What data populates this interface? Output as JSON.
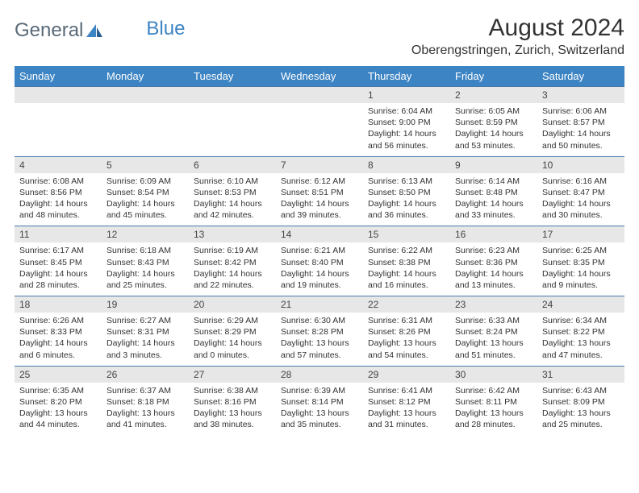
{
  "brand": {
    "part1": "General",
    "part2": "Blue"
  },
  "title": "August 2024",
  "subtitle": "Oberengstringen, Zurich, Switzerland",
  "day_headers": [
    "Sunday",
    "Monday",
    "Tuesday",
    "Wednesday",
    "Thursday",
    "Friday",
    "Saturday"
  ],
  "colors": {
    "header_bg": "#3d84c4",
    "header_text": "#ffffff",
    "daynum_bg": "#e7e7e7",
    "row_border": "#4a7aa8",
    "text": "#333333",
    "logo_gray": "#5a6a78",
    "logo_blue": "#3d84c4"
  },
  "weeks": [
    [
      null,
      null,
      null,
      null,
      {
        "n": "1",
        "sr": "6:04 AM",
        "ss": "9:00 PM",
        "dl": "14 hours and 56 minutes."
      },
      {
        "n": "2",
        "sr": "6:05 AM",
        "ss": "8:59 PM",
        "dl": "14 hours and 53 minutes."
      },
      {
        "n": "3",
        "sr": "6:06 AM",
        "ss": "8:57 PM",
        "dl": "14 hours and 50 minutes."
      }
    ],
    [
      {
        "n": "4",
        "sr": "6:08 AM",
        "ss": "8:56 PM",
        "dl": "14 hours and 48 minutes."
      },
      {
        "n": "5",
        "sr": "6:09 AM",
        "ss": "8:54 PM",
        "dl": "14 hours and 45 minutes."
      },
      {
        "n": "6",
        "sr": "6:10 AM",
        "ss": "8:53 PM",
        "dl": "14 hours and 42 minutes."
      },
      {
        "n": "7",
        "sr": "6:12 AM",
        "ss": "8:51 PM",
        "dl": "14 hours and 39 minutes."
      },
      {
        "n": "8",
        "sr": "6:13 AM",
        "ss": "8:50 PM",
        "dl": "14 hours and 36 minutes."
      },
      {
        "n": "9",
        "sr": "6:14 AM",
        "ss": "8:48 PM",
        "dl": "14 hours and 33 minutes."
      },
      {
        "n": "10",
        "sr": "6:16 AM",
        "ss": "8:47 PM",
        "dl": "14 hours and 30 minutes."
      }
    ],
    [
      {
        "n": "11",
        "sr": "6:17 AM",
        "ss": "8:45 PM",
        "dl": "14 hours and 28 minutes."
      },
      {
        "n": "12",
        "sr": "6:18 AM",
        "ss": "8:43 PM",
        "dl": "14 hours and 25 minutes."
      },
      {
        "n": "13",
        "sr": "6:19 AM",
        "ss": "8:42 PM",
        "dl": "14 hours and 22 minutes."
      },
      {
        "n": "14",
        "sr": "6:21 AM",
        "ss": "8:40 PM",
        "dl": "14 hours and 19 minutes."
      },
      {
        "n": "15",
        "sr": "6:22 AM",
        "ss": "8:38 PM",
        "dl": "14 hours and 16 minutes."
      },
      {
        "n": "16",
        "sr": "6:23 AM",
        "ss": "8:36 PM",
        "dl": "14 hours and 13 minutes."
      },
      {
        "n": "17",
        "sr": "6:25 AM",
        "ss": "8:35 PM",
        "dl": "14 hours and 9 minutes."
      }
    ],
    [
      {
        "n": "18",
        "sr": "6:26 AM",
        "ss": "8:33 PM",
        "dl": "14 hours and 6 minutes."
      },
      {
        "n": "19",
        "sr": "6:27 AM",
        "ss": "8:31 PM",
        "dl": "14 hours and 3 minutes."
      },
      {
        "n": "20",
        "sr": "6:29 AM",
        "ss": "8:29 PM",
        "dl": "14 hours and 0 minutes."
      },
      {
        "n": "21",
        "sr": "6:30 AM",
        "ss": "8:28 PM",
        "dl": "13 hours and 57 minutes."
      },
      {
        "n": "22",
        "sr": "6:31 AM",
        "ss": "8:26 PM",
        "dl": "13 hours and 54 minutes."
      },
      {
        "n": "23",
        "sr": "6:33 AM",
        "ss": "8:24 PM",
        "dl": "13 hours and 51 minutes."
      },
      {
        "n": "24",
        "sr": "6:34 AM",
        "ss": "8:22 PM",
        "dl": "13 hours and 47 minutes."
      }
    ],
    [
      {
        "n": "25",
        "sr": "6:35 AM",
        "ss": "8:20 PM",
        "dl": "13 hours and 44 minutes."
      },
      {
        "n": "26",
        "sr": "6:37 AM",
        "ss": "8:18 PM",
        "dl": "13 hours and 41 minutes."
      },
      {
        "n": "27",
        "sr": "6:38 AM",
        "ss": "8:16 PM",
        "dl": "13 hours and 38 minutes."
      },
      {
        "n": "28",
        "sr": "6:39 AM",
        "ss": "8:14 PM",
        "dl": "13 hours and 35 minutes."
      },
      {
        "n": "29",
        "sr": "6:41 AM",
        "ss": "8:12 PM",
        "dl": "13 hours and 31 minutes."
      },
      {
        "n": "30",
        "sr": "6:42 AM",
        "ss": "8:11 PM",
        "dl": "13 hours and 28 minutes."
      },
      {
        "n": "31",
        "sr": "6:43 AM",
        "ss": "8:09 PM",
        "dl": "13 hours and 25 minutes."
      }
    ]
  ],
  "labels": {
    "sunrise": "Sunrise:",
    "sunset": "Sunset:",
    "daylight": "Daylight:"
  }
}
